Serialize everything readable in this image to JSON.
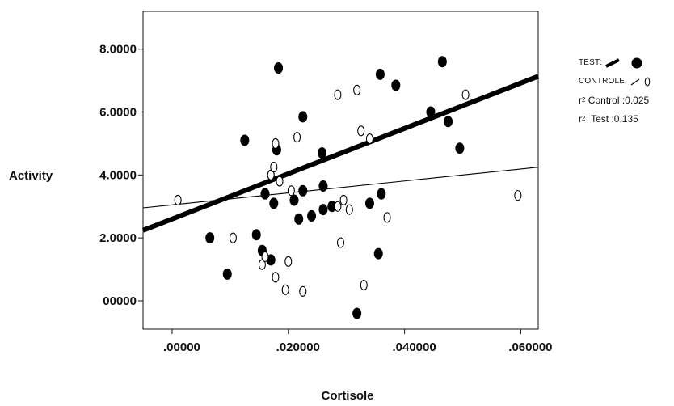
{
  "chart_data": {
    "type": "scatter",
    "xlabel": "Cortisole",
    "ylabel": "Activity",
    "xlim": [
      -0.005,
      0.063
    ],
    "ylim": [
      -0.9,
      9.2
    ],
    "x_ticks": [
      {
        "value": 0.0,
        "label": ".00000"
      },
      {
        "value": 0.02,
        "label": ".020000"
      },
      {
        "value": 0.04,
        "label": ".040000"
      },
      {
        "value": 0.06,
        "label": ".060000"
      }
    ],
    "y_ticks": [
      {
        "value": 0.0,
        "label": "00000"
      },
      {
        "value": 2.0,
        "label": "2.0000"
      },
      {
        "value": 4.0,
        "label": "4.0000"
      },
      {
        "value": 6.0,
        "label": "6.0000"
      },
      {
        "value": 8.0,
        "label": "8.0000"
      }
    ],
    "grid": false,
    "legend_position": "right",
    "series": [
      {
        "name": "TEST",
        "marker": "filled-ellipse",
        "color": "#000000",
        "fit_line": {
          "intercept": 2.6,
          "slope": 72.0
        },
        "points": [
          {
            "x": 0.0065,
            "y": 2.0
          },
          {
            "x": 0.0095,
            "y": 0.85
          },
          {
            "x": 0.0125,
            "y": 5.1
          },
          {
            "x": 0.0145,
            "y": 2.1
          },
          {
            "x": 0.0155,
            "y": 1.6
          },
          {
            "x": 0.016,
            "y": 3.4
          },
          {
            "x": 0.017,
            "y": 1.3
          },
          {
            "x": 0.0175,
            "y": 3.1
          },
          {
            "x": 0.018,
            "y": 4.8
          },
          {
            "x": 0.0183,
            "y": 7.4
          },
          {
            "x": 0.021,
            "y": 3.2
          },
          {
            "x": 0.0218,
            "y": 2.6
          },
          {
            "x": 0.0225,
            "y": 5.85
          },
          {
            "x": 0.0225,
            "y": 3.5
          },
          {
            "x": 0.024,
            "y": 2.7
          },
          {
            "x": 0.0258,
            "y": 4.7
          },
          {
            "x": 0.026,
            "y": 3.65
          },
          {
            "x": 0.026,
            "y": 2.9
          },
          {
            "x": 0.0275,
            "y": 3.0
          },
          {
            "x": 0.0318,
            "y": -0.4
          },
          {
            "x": 0.034,
            "y": 3.1
          },
          {
            "x": 0.0355,
            "y": 1.5
          },
          {
            "x": 0.0358,
            "y": 7.2
          },
          {
            "x": 0.036,
            "y": 3.4
          },
          {
            "x": 0.0385,
            "y": 6.85
          },
          {
            "x": 0.0445,
            "y": 6.0
          },
          {
            "x": 0.0465,
            "y": 7.6
          },
          {
            "x": 0.0475,
            "y": 5.7
          },
          {
            "x": 0.0495,
            "y": 4.85
          }
        ]
      },
      {
        "name": "CONTROLE",
        "marker": "hollow-ellipse",
        "color": "#000000",
        "fit_line": {
          "intercept": 3.05,
          "slope": 19.0
        },
        "points": [
          {
            "x": 0.001,
            "y": 3.2
          },
          {
            "x": 0.0105,
            "y": 2.0
          },
          {
            "x": 0.0155,
            "y": 1.15
          },
          {
            "x": 0.016,
            "y": 1.4
          },
          {
            "x": 0.017,
            "y": 4.0
          },
          {
            "x": 0.0175,
            "y": 4.25
          },
          {
            "x": 0.0178,
            "y": 5.0
          },
          {
            "x": 0.0178,
            "y": 0.75
          },
          {
            "x": 0.0185,
            "y": 3.8
          },
          {
            "x": 0.0195,
            "y": 0.35
          },
          {
            "x": 0.02,
            "y": 1.25
          },
          {
            "x": 0.0205,
            "y": 3.5
          },
          {
            "x": 0.0215,
            "y": 5.2
          },
          {
            "x": 0.0225,
            "y": 0.3
          },
          {
            "x": 0.0285,
            "y": 6.55
          },
          {
            "x": 0.0285,
            "y": 3.0
          },
          {
            "x": 0.029,
            "y": 1.85
          },
          {
            "x": 0.0295,
            "y": 3.2
          },
          {
            "x": 0.0305,
            "y": 2.9
          },
          {
            "x": 0.0318,
            "y": 6.7
          },
          {
            "x": 0.0325,
            "y": 5.4
          },
          {
            "x": 0.033,
            "y": 0.5
          },
          {
            "x": 0.034,
            "y": 5.15
          },
          {
            "x": 0.037,
            "y": 2.65
          },
          {
            "x": 0.0505,
            "y": 6.55
          },
          {
            "x": 0.0595,
            "y": 3.35
          }
        ]
      }
    ],
    "annotations": [
      {
        "label": "r",
        "sup": "2",
        "text": "Control :0.025"
      },
      {
        "label": "r",
        "sup": "2",
        "text": "Test :0.135"
      }
    ]
  }
}
